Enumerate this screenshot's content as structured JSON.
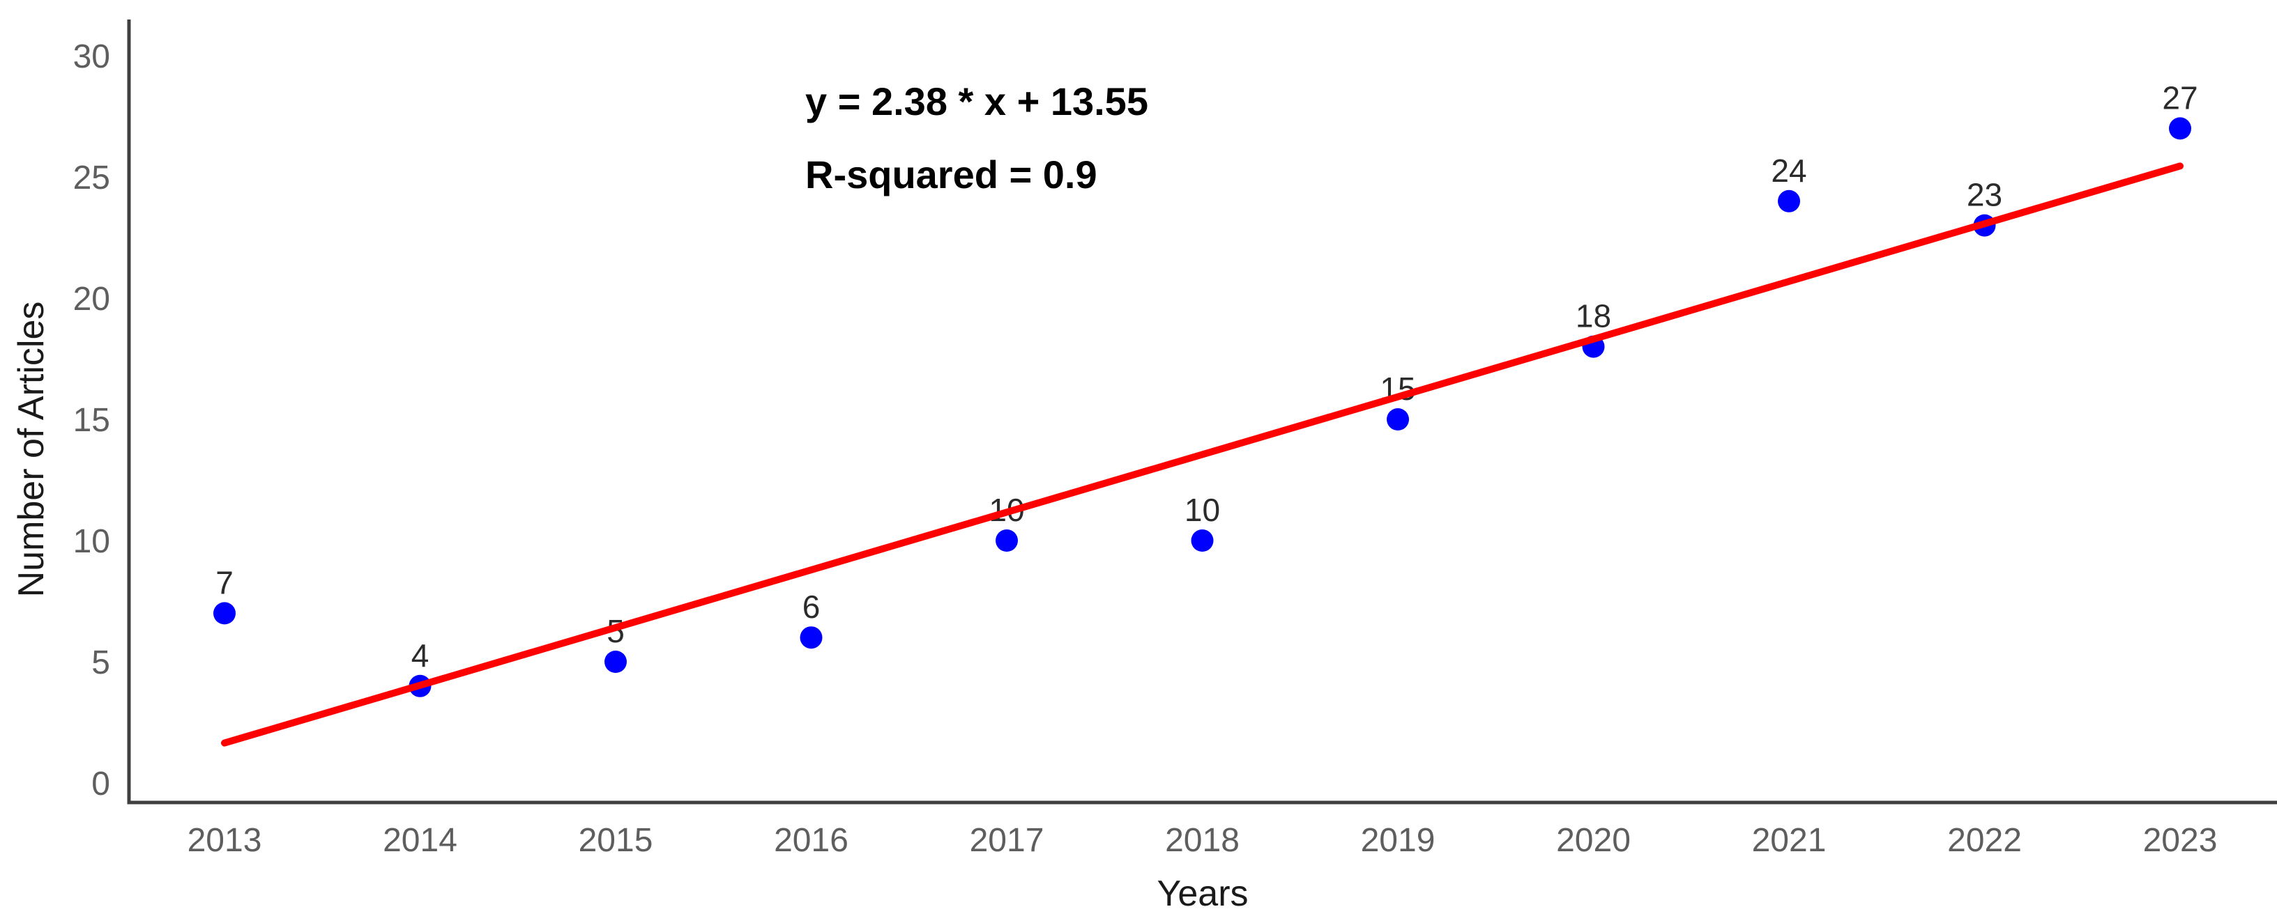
{
  "chart_data": {
    "type": "scatter",
    "title": "",
    "xlabel": "Years",
    "ylabel": "Number of Articles",
    "x": [
      2013,
      2014,
      2015,
      2016,
      2017,
      2018,
      2019,
      2020,
      2021,
      2022,
      2023
    ],
    "x_tick_labels": [
      "2013",
      "2014",
      "2015",
      "2016",
      "2017",
      "2018",
      "2019",
      "2020",
      "2021",
      "2022",
      "2023"
    ],
    "values": [
      7,
      4,
      5,
      6,
      10,
      10,
      15,
      18,
      24,
      23,
      27
    ],
    "point_labels": [
      "7",
      "4",
      "5",
      "6",
      "10",
      "10",
      "15",
      "18",
      "24",
      "23",
      "27"
    ],
    "y_ticks": [
      0,
      5,
      10,
      15,
      20,
      25,
      30
    ],
    "ylim": [
      0,
      30
    ],
    "grid": false,
    "legend": "none",
    "annotation": {
      "equation": "y = 2.38 * x + 13.55",
      "r_squared": "R-squared = 0.9"
    },
    "trend": {
      "slope": 2.38,
      "intercept": 13.55,
      "x_center": 2018,
      "x_start": 2013,
      "x_end": 2023
    },
    "colors": {
      "point": "#0000ff",
      "trend_line": "#ff0000",
      "axis": "#404040",
      "tick_label": "#5e5e5e",
      "point_label": "#2b2b2b",
      "axis_title": "#1a1a1a",
      "annotation": "#000000",
      "background": "#ffffff"
    }
  }
}
